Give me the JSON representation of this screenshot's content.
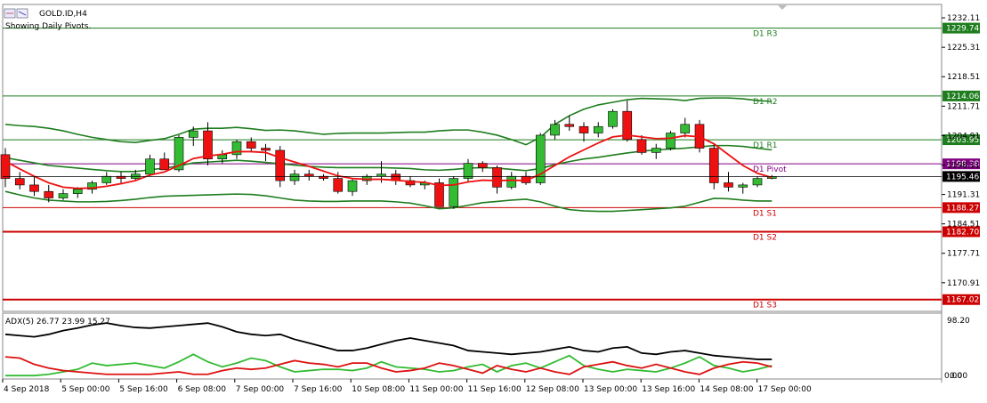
{
  "window": {
    "title": "GOLD.ID,H4",
    "subtitle": "Showing Daily Pivots."
  },
  "price_axis": {
    "ticks": [
      "1232.11",
      "1225.31",
      "1218.51",
      "1211.71",
      "1204.91",
      "1198.11",
      "1191.31",
      "1184.51",
      "1177.71",
      "1170.91"
    ],
    "current_price": "1195.46"
  },
  "pivot_levels": [
    {
      "name": "D1 R3",
      "value": "1229.74",
      "color": "#1e7d1e",
      "price": 1229.74
    },
    {
      "name": "D1 R2",
      "value": "1214.06",
      "color": "#1e7d1e",
      "price": 1214.06
    },
    {
      "name": "D1 R1",
      "value": "1203.95",
      "color": "#1e7d1e",
      "price": 1203.95
    },
    {
      "name": "D1 Pivot",
      "value": "1198.38",
      "color": "#800080",
      "price": 1198.38
    },
    {
      "name": "D1 S1",
      "value": "1188.27",
      "color": "#cc0000",
      "price": 1188.27
    },
    {
      "name": "D1 S2",
      "value": "1182.70",
      "color": "#cc0000",
      "price": 1182.7
    },
    {
      "name": "D1 S3",
      "value": "1167.02",
      "color": "#cc0000",
      "price": 1167.02
    }
  ],
  "indicator": {
    "label": "ADX(5) 26.77 23.99 15.27",
    "axis_top": "98.20",
    "axis_bottom": "0.00",
    "axis_bottom_b": "0.00"
  },
  "time_axis": [
    "4 Sep 2018",
    "5 Sep 00:00",
    "5 Sep 16:00",
    "6 Sep 08:00",
    "7 Sep 00:00",
    "7 Sep 16:00",
    "10 Sep 08:00",
    "11 Sep 00:00",
    "11 Sep 16:00",
    "12 Sep 08:00",
    "13 Sep 00:00",
    "13 Sep 16:00",
    "14 Sep 08:00",
    "17 Sep 00:00"
  ],
  "chart_data": {
    "type": "candlestick",
    "symbol": "GOLD.ID",
    "timeframe": "H4",
    "ylim": [
      1164.5,
      1235.0
    ],
    "candles": [
      {
        "o": 1200.5,
        "h": 1202.0,
        "l": 1193.0,
        "c": 1195.0
      },
      {
        "o": 1195.0,
        "h": 1196.5,
        "l": 1192.5,
        "c": 1193.5
      },
      {
        "o": 1193.5,
        "h": 1195.5,
        "l": 1191.0,
        "c": 1192.0
      },
      {
        "o": 1192.0,
        "h": 1193.5,
        "l": 1189.5,
        "c": 1190.5
      },
      {
        "o": 1190.5,
        "h": 1192.5,
        "l": 1190.0,
        "c": 1191.5
      },
      {
        "o": 1191.5,
        "h": 1193.0,
        "l": 1190.5,
        "c": 1192.5
      },
      {
        "o": 1192.5,
        "h": 1194.5,
        "l": 1191.5,
        "c": 1194.0
      },
      {
        "o": 1194.0,
        "h": 1196.5,
        "l": 1193.5,
        "c": 1195.5
      },
      {
        "o": 1195.5,
        "h": 1196.5,
        "l": 1194.0,
        "c": 1195.0
      },
      {
        "o": 1195.0,
        "h": 1197.0,
        "l": 1194.5,
        "c": 1196.0
      },
      {
        "o": 1196.0,
        "h": 1200.5,
        "l": 1195.5,
        "c": 1199.5
      },
      {
        "o": 1199.5,
        "h": 1201.0,
        "l": 1197.5,
        "c": 1197.0
      },
      {
        "o": 1197.0,
        "h": 1205.0,
        "l": 1196.5,
        "c": 1204.5
      },
      {
        "o": 1204.5,
        "h": 1207.0,
        "l": 1202.5,
        "c": 1206.0
      },
      {
        "o": 1206.0,
        "h": 1208.0,
        "l": 1198.0,
        "c": 1199.5
      },
      {
        "o": 1199.5,
        "h": 1201.5,
        "l": 1198.5,
        "c": 1200.5
      },
      {
        "o": 1200.5,
        "h": 1204.0,
        "l": 1199.5,
        "c": 1203.5
      },
      {
        "o": 1203.5,
        "h": 1204.5,
        "l": 1201.0,
        "c": 1202.0
      },
      {
        "o": 1202.0,
        "h": 1203.0,
        "l": 1199.0,
        "c": 1201.5
      },
      {
        "o": 1201.5,
        "h": 1202.5,
        "l": 1193.0,
        "c": 1194.5
      },
      {
        "o": 1194.5,
        "h": 1197.0,
        "l": 1193.5,
        "c": 1196.0
      },
      {
        "o": 1196.0,
        "h": 1197.0,
        "l": 1194.5,
        "c": 1195.5
      },
      {
        "o": 1195.5,
        "h": 1196.0,
        "l": 1194.5,
        "c": 1195.0
      },
      {
        "o": 1195.0,
        "h": 1196.5,
        "l": 1191.5,
        "c": 1192.0
      },
      {
        "o": 1192.0,
        "h": 1195.0,
        "l": 1191.0,
        "c": 1194.5
      },
      {
        "o": 1194.5,
        "h": 1196.0,
        "l": 1193.5,
        "c": 1195.5
      },
      {
        "o": 1195.5,
        "h": 1199.0,
        "l": 1194.0,
        "c": 1196.0
      },
      {
        "o": 1196.0,
        "h": 1197.0,
        "l": 1193.5,
        "c": 1194.5
      },
      {
        "o": 1194.5,
        "h": 1195.5,
        "l": 1193.0,
        "c": 1193.5
      },
      {
        "o": 1193.5,
        "h": 1194.5,
        "l": 1192.5,
        "c": 1194.0
      },
      {
        "o": 1194.0,
        "h": 1195.0,
        "l": 1189.0,
        "c": 1188.5
      },
      {
        "o": 1188.5,
        "h": 1195.5,
        "l": 1188.0,
        "c": 1195.0
      },
      {
        "o": 1195.0,
        "h": 1199.5,
        "l": 1194.0,
        "c": 1198.5
      },
      {
        "o": 1198.5,
        "h": 1199.0,
        "l": 1196.5,
        "c": 1197.5
      },
      {
        "o": 1197.5,
        "h": 1198.0,
        "l": 1191.5,
        "c": 1193.0
      },
      {
        "o": 1193.0,
        "h": 1196.5,
        "l": 1192.5,
        "c": 1195.5
      },
      {
        "o": 1195.5,
        "h": 1196.5,
        "l": 1193.5,
        "c": 1194.0
      },
      {
        "o": 1194.0,
        "h": 1205.5,
        "l": 1193.5,
        "c": 1205.0
      },
      {
        "o": 1205.0,
        "h": 1208.5,
        "l": 1204.0,
        "c": 1207.5
      },
      {
        "o": 1207.5,
        "h": 1209.5,
        "l": 1206.0,
        "c": 1207.0
      },
      {
        "o": 1207.0,
        "h": 1208.0,
        "l": 1203.5,
        "c": 1205.5
      },
      {
        "o": 1205.5,
        "h": 1208.0,
        "l": 1204.5,
        "c": 1207.0
      },
      {
        "o": 1207.0,
        "h": 1211.0,
        "l": 1206.5,
        "c": 1210.5
      },
      {
        "o": 1210.5,
        "h": 1213.0,
        "l": 1203.5,
        "c": 1204.0
      },
      {
        "o": 1204.0,
        "h": 1205.0,
        "l": 1200.5,
        "c": 1201.0
      },
      {
        "o": 1201.0,
        "h": 1203.0,
        "l": 1199.5,
        "c": 1202.0
      },
      {
        "o": 1202.0,
        "h": 1206.0,
        "l": 1201.5,
        "c": 1205.5
      },
      {
        "o": 1205.5,
        "h": 1209.0,
        "l": 1204.5,
        "c": 1207.5
      },
      {
        "o": 1207.5,
        "h": 1208.5,
        "l": 1201.0,
        "c": 1202.0
      },
      {
        "o": 1202.0,
        "h": 1203.0,
        "l": 1192.5,
        "c": 1194.0
      },
      {
        "o": 1194.0,
        "h": 1196.5,
        "l": 1192.0,
        "c": 1193.0
      },
      {
        "o": 1193.0,
        "h": 1194.0,
        "l": 1191.5,
        "c": 1193.5
      },
      {
        "o": 1193.5,
        "h": 1195.5,
        "l": 1193.0,
        "c": 1195.0
      },
      {
        "o": 1195.0,
        "h": 1195.8,
        "l": 1194.8,
        "c": 1195.46
      }
    ],
    "ma_red": [
      1199.0,
      1197.2,
      1195.5,
      1194.0,
      1193.0,
      1192.7,
      1192.8,
      1193.2,
      1193.8,
      1194.5,
      1195.8,
      1196.5,
      1198.0,
      1199.6,
      1200.2,
      1200.6,
      1201.2,
      1201.2,
      1201.0,
      1199.8,
      1198.8,
      1197.8,
      1196.7,
      1195.6,
      1195.0,
      1194.8,
      1194.8,
      1194.6,
      1194.3,
      1194.1,
      1193.4,
      1193.5,
      1194.2,
      1194.6,
      1194.5,
      1194.6,
      1194.5,
      1196.0,
      1198.0,
      1200.0,
      1201.6,
      1203.2,
      1204.6,
      1205.0,
      1204.6,
      1204.2,
      1204.3,
      1204.9,
      1204.6,
      1203.0,
      1200.5,
      1198.0,
      1196.2,
      1195.2
    ],
    "bb_upper": [
      1207.5,
      1207.2,
      1207.0,
      1206.6,
      1206.0,
      1205.2,
      1204.5,
      1204.0,
      1203.5,
      1203.3,
      1203.8,
      1204.2,
      1205.2,
      1206.4,
      1206.6,
      1206.6,
      1206.8,
      1206.5,
      1206.1,
      1206.2,
      1206.0,
      1205.6,
      1205.2,
      1205.4,
      1205.5,
      1205.5,
      1205.5,
      1205.6,
      1205.7,
      1205.7,
      1206.0,
      1206.2,
      1206.2,
      1205.7,
      1205.0,
      1204.0,
      1202.8,
      1204.5,
      1207.5,
      1209.5,
      1211.0,
      1212.0,
      1212.6,
      1213.2,
      1213.5,
      1213.4,
      1213.3,
      1213.0,
      1213.5,
      1213.6,
      1213.6,
      1213.4,
      1213.0,
      1212.8
    ],
    "bb_lower": [
      1192.0,
      1191.2,
      1190.5,
      1190.0,
      1189.8,
      1189.6,
      1189.6,
      1189.7,
      1189.9,
      1190.2,
      1190.6,
      1190.9,
      1191.0,
      1191.1,
      1191.2,
      1191.3,
      1191.4,
      1191.3,
      1191.0,
      1190.5,
      1190.0,
      1189.8,
      1189.7,
      1189.7,
      1189.8,
      1189.8,
      1189.8,
      1189.6,
      1189.3,
      1188.7,
      1188.0,
      1188.2,
      1188.8,
      1189.4,
      1189.7,
      1190.0,
      1190.2,
      1189.6,
      1188.6,
      1187.8,
      1187.5,
      1187.4,
      1187.4,
      1187.6,
      1187.8,
      1188.0,
      1188.2,
      1188.6,
      1189.5,
      1190.4,
      1190.3,
      1190.0,
      1189.8,
      1189.8
    ],
    "bb_mid": [
      1199.8,
      1199.2,
      1198.6,
      1198.0,
      1197.7,
      1197.4,
      1197.1,
      1196.8,
      1196.6,
      1196.6,
      1197.0,
      1197.4,
      1197.9,
      1198.6,
      1198.8,
      1199.0,
      1199.2,
      1199.0,
      1198.7,
      1198.4,
      1198.1,
      1197.8,
      1197.6,
      1197.5,
      1197.5,
      1197.5,
      1197.5,
      1197.4,
      1197.3,
      1197.0,
      1196.9,
      1197.1,
      1197.4,
      1197.5,
      1197.4,
      1197.1,
      1196.8,
      1197.3,
      1198.2,
      1198.9,
      1199.5,
      1199.9,
      1200.4,
      1200.9,
      1201.3,
      1201.6,
      1201.8,
      1202.0,
      1202.3,
      1202.6,
      1202.6,
      1202.4,
      1202.0,
      1201.6
    ],
    "adx": {
      "type": "line",
      "ylim": [
        0,
        98.2
      ],
      "series": [
        {
          "color": "#000000",
          "values": [
            70,
            68,
            66,
            70,
            76,
            80,
            85,
            88,
            84,
            81,
            80,
            82,
            84,
            86,
            88,
            82,
            74,
            70,
            68,
            70,
            62,
            56,
            50,
            44,
            44,
            48,
            54,
            60,
            64,
            60,
            56,
            52,
            44,
            42,
            40,
            38,
            40,
            42,
            46,
            50,
            44,
            42,
            48,
            50,
            40,
            38,
            42,
            44,
            40,
            36,
            34,
            32,
            30,
            30
          ]
        },
        {
          "color": "#33bb33",
          "values": [
            4,
            4,
            4,
            6,
            10,
            14,
            24,
            20,
            22,
            24,
            20,
            16,
            26,
            38,
            26,
            18,
            24,
            32,
            28,
            18,
            10,
            12,
            14,
            14,
            12,
            16,
            26,
            18,
            16,
            14,
            10,
            12,
            18,
            22,
            10,
            20,
            24,
            16,
            26,
            36,
            20,
            14,
            10,
            14,
            12,
            10,
            16,
            24,
            34,
            20,
            16,
            10,
            14,
            20
          ]
        },
        {
          "color": "#dd1111",
          "values": [
            34,
            32,
            22,
            16,
            12,
            10,
            8,
            6,
            6,
            6,
            6,
            8,
            10,
            6,
            6,
            12,
            16,
            14,
            16,
            22,
            28,
            24,
            22,
            18,
            24,
            24,
            16,
            10,
            12,
            16,
            24,
            20,
            14,
            8,
            20,
            14,
            10,
            16,
            10,
            6,
            18,
            22,
            26,
            20,
            16,
            22,
            16,
            10,
            6,
            16,
            22,
            26,
            24,
            18
          ]
        }
      ]
    }
  }
}
